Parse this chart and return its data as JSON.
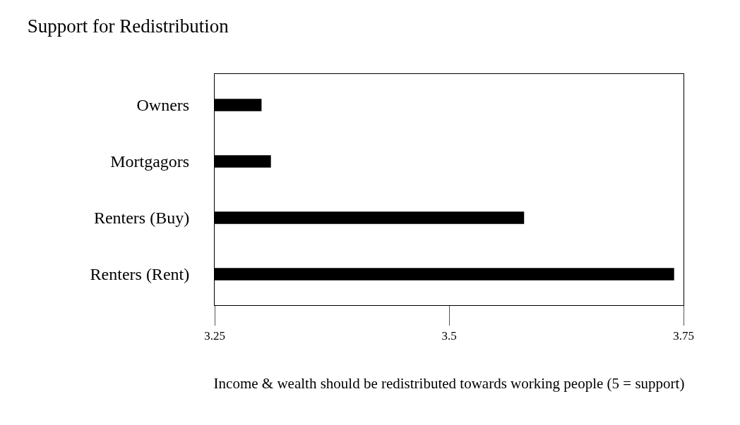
{
  "chart_data": {
    "type": "bar",
    "orientation": "horizontal",
    "title": "Support for Redistribution",
    "xlabel": "Income & wealth should be redistributed towards working people (5 = support)",
    "categories": [
      "Owners",
      "Mortgagors",
      "Renters (Buy)",
      "Renters (Rent)"
    ],
    "values": [
      3.3,
      3.31,
      3.58,
      3.74
    ],
    "color": "#000000",
    "xlim": [
      3.25,
      3.75
    ],
    "xticks": [
      3.25,
      3.5,
      3.75
    ]
  }
}
